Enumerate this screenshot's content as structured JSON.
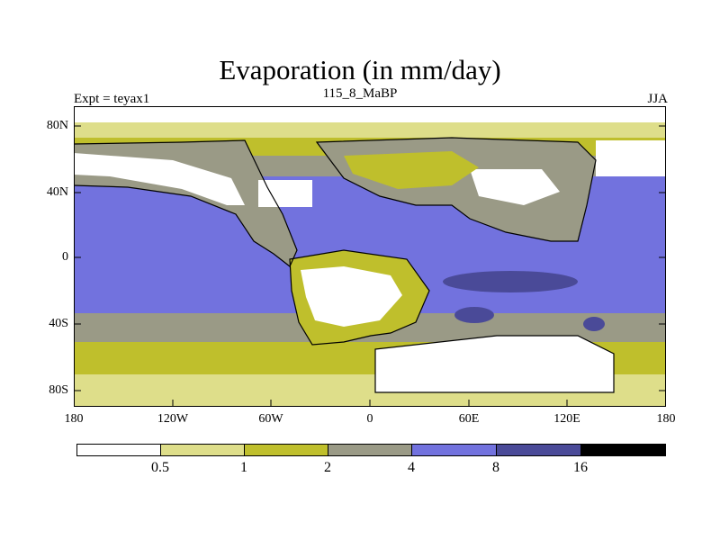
{
  "title": "Evaporation (in mm/day)",
  "left_label": "Expt = teyax1",
  "center_label": "115_8_MaBP",
  "right_label": "JJA",
  "y_ticks": [
    "80N",
    "40N",
    "0",
    "40S",
    "80S"
  ],
  "x_ticks": [
    "180",
    "120W",
    "60W",
    "0",
    "60E",
    "120E",
    "180"
  ],
  "colorbar": {
    "labels": [
      "0.5",
      "1",
      "2",
      "4",
      "8",
      "16"
    ],
    "colors": [
      "#ffffff",
      "#dede8a",
      "#bfbf2c",
      "#9a9a86",
      "#7272de",
      "#4a4a98",
      "#000000"
    ]
  },
  "map_colors": {
    "ocean_high": "#7272de",
    "max": "#4a4a98",
    "mid": "#9a9a86",
    "low": "#bfbf2c",
    "lower": "#dede8a",
    "min": "#ffffff"
  }
}
